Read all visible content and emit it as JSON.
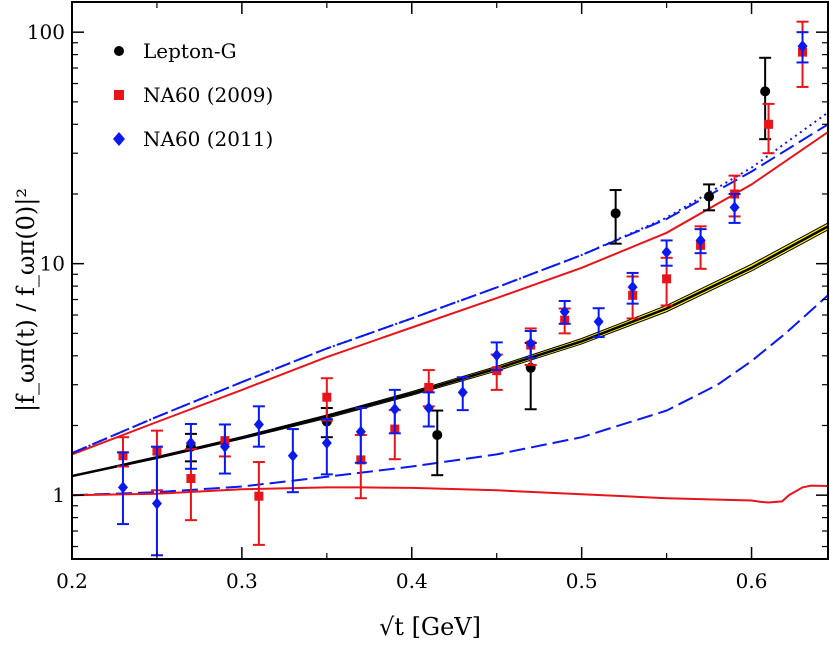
{
  "chart_data": {
    "type": "scatter",
    "title": "",
    "xlabel": "√t [GeV]",
    "ylabel": "|f_ωπ(t) / f_ωπ(0)|²",
    "y_scale": "log",
    "xlim": [
      0.2,
      0.645
    ],
    "ylim": [
      0.53,
      135
    ],
    "x_ticks": [
      0.2,
      0.3,
      0.4,
      0.5,
      0.6
    ],
    "x_tick_labels": [
      "0.2",
      "0.3",
      "0.4",
      "0.5",
      "0.6"
    ],
    "y_ticks": [
      1,
      10,
      100
    ],
    "y_tick_labels": [
      "1",
      "10",
      "100"
    ],
    "legend_position": "top-left",
    "series": [
      {
        "name": "Lepton-G",
        "kind": "points",
        "marker": "circle",
        "color": "#000000",
        "x": [
          0.27,
          0.35,
          0.415,
          0.47,
          0.52,
          0.575,
          0.608
        ],
        "y": [
          1.62,
          2.08,
          1.82,
          3.55,
          16.5,
          19.5,
          55.5
        ],
        "err_lo": [
          0.22,
          0.3,
          0.6,
          1.2,
          4.3,
          2.5,
          21.0
        ],
        "err_hi": [
          0.22,
          0.3,
          0.5,
          1.0,
          4.3,
          2.5,
          22.0
        ]
      },
      {
        "name": "NA60 (2009)",
        "kind": "points",
        "marker": "square",
        "color": "#e8141a",
        "x": [
          0.23,
          0.25,
          0.27,
          0.29,
          0.31,
          0.35,
          0.37,
          0.39,
          0.41,
          0.45,
          0.47,
          0.49,
          0.53,
          0.55,
          0.57,
          0.59,
          0.61,
          0.63
        ],
        "y": [
          1.48,
          1.55,
          1.18,
          1.72,
          0.99,
          2.65,
          1.42,
          1.93,
          2.92,
          3.45,
          4.45,
          5.7,
          7.3,
          8.6,
          12.0,
          20.0,
          40.0,
          82.0
        ],
        "err_lo": [
          0.15,
          0.5,
          0.4,
          0.25,
          0.38,
          0.55,
          0.45,
          0.5,
          0.5,
          0.6,
          0.8,
          0.7,
          1.5,
          2.0,
          2.5,
          4.0,
          10.0,
          24.0
        ],
        "err_hi": [
          0.3,
          0.35,
          0.4,
          0.3,
          0.4,
          0.55,
          0.4,
          0.4,
          0.55,
          0.6,
          0.8,
          0.7,
          1.5,
          2.0,
          2.5,
          4.0,
          9.0,
          29.0
        ]
      },
      {
        "name": "NA60 (2011)",
        "kind": "points",
        "marker": "diamond",
        "color": "#0a19f0",
        "x": [
          0.23,
          0.25,
          0.27,
          0.29,
          0.31,
          0.33,
          0.35,
          0.37,
          0.39,
          0.41,
          0.43,
          0.45,
          0.47,
          0.49,
          0.51,
          0.53,
          0.55,
          0.57,
          0.59,
          0.63
        ],
        "y": [
          1.08,
          0.92,
          1.68,
          1.62,
          2.02,
          1.48,
          1.68,
          1.88,
          2.35,
          2.38,
          2.78,
          4.02,
          4.52,
          6.2,
          5.62,
          7.92,
          11.2,
          12.6,
          17.5,
          87.0
        ],
        "err_lo": [
          0.33,
          0.37,
          0.38,
          0.38,
          0.4,
          0.45,
          0.45,
          0.5,
          0.5,
          0.4,
          0.45,
          0.55,
          0.6,
          0.7,
          0.8,
          1.2,
          1.4,
          1.5,
          2.5,
          13.0
        ],
        "err_hi": [
          0.45,
          0.7,
          0.35,
          0.4,
          0.4,
          0.45,
          0.45,
          0.5,
          0.5,
          0.4,
          0.45,
          0.55,
          0.6,
          0.7,
          0.8,
          1.2,
          1.4,
          1.5,
          2.5,
          13.0
        ]
      },
      {
        "name": "band",
        "kind": "band",
        "color": "#ffef00",
        "x": [
          0.2,
          0.25,
          0.3,
          0.35,
          0.4,
          0.45,
          0.5,
          0.55,
          0.6,
          0.645
        ],
        "y_lo": [
          1.205,
          1.44,
          1.75,
          2.15,
          2.7,
          3.44,
          4.5,
          6.2,
          9.3,
          14.0
        ],
        "y_hi": [
          1.215,
          1.47,
          1.79,
          2.22,
          2.8,
          3.6,
          4.75,
          6.6,
          9.95,
          15.0
        ]
      },
      {
        "name": "central curve",
        "kind": "line",
        "color": "#000000",
        "dash": "solid",
        "x": [
          0.2,
          0.25,
          0.3,
          0.35,
          0.4,
          0.45,
          0.5,
          0.55,
          0.6,
          0.645
        ],
        "y": [
          1.21,
          1.45,
          1.77,
          2.19,
          2.75,
          3.52,
          4.62,
          6.4,
          9.6,
          14.5
        ]
      },
      {
        "name": "upper red",
        "kind": "line",
        "color": "#e8141a",
        "dash": "solid",
        "x": [
          0.2,
          0.25,
          0.3,
          0.35,
          0.4,
          0.45,
          0.5,
          0.55,
          0.6,
          0.645
        ],
        "y": [
          1.5,
          2.07,
          2.85,
          3.95,
          5.3,
          7.1,
          9.6,
          13.6,
          22.0,
          37.0
        ]
      },
      {
        "name": "upper blue dashed",
        "kind": "line",
        "color": "#0a19f0",
        "dash": "dashed",
        "x": [
          0.2,
          0.25,
          0.3,
          0.35,
          0.4,
          0.45,
          0.5,
          0.55,
          0.6,
          0.645
        ],
        "y": [
          1.52,
          2.18,
          3.08,
          4.3,
          5.8,
          7.9,
          10.9,
          15.6,
          25.0,
          40.0
        ]
      },
      {
        "name": "upper blue dotted",
        "kind": "line",
        "color": "#0a19f0",
        "dash": "dotted",
        "x": [
          0.2,
          0.25,
          0.3,
          0.35,
          0.4,
          0.45,
          0.5,
          0.55,
          0.6,
          0.645
        ],
        "y": [
          1.52,
          2.18,
          3.08,
          4.3,
          5.8,
          7.9,
          10.9,
          15.8,
          26.0,
          45.0
        ]
      },
      {
        "name": "lower blue dashed",
        "kind": "line",
        "color": "#0a19f0",
        "dash": "dashed",
        "x": [
          0.2,
          0.25,
          0.3,
          0.35,
          0.4,
          0.45,
          0.5,
          0.55,
          0.58,
          0.6,
          0.62,
          0.645
        ],
        "y": [
          1.0,
          1.03,
          1.09,
          1.2,
          1.33,
          1.5,
          1.78,
          2.32,
          3.0,
          3.8,
          5.0,
          7.3
        ]
      },
      {
        "name": "lower red",
        "kind": "line",
        "color": "#e8141a",
        "dash": "solid",
        "x": [
          0.2,
          0.25,
          0.3,
          0.35,
          0.37,
          0.4,
          0.45,
          0.5,
          0.55,
          0.6,
          0.605,
          0.61,
          0.618,
          0.622,
          0.63,
          0.635,
          0.645
        ],
        "y": [
          1.0,
          1.015,
          1.06,
          1.08,
          1.08,
          1.075,
          1.05,
          1.01,
          0.97,
          0.948,
          0.936,
          0.93,
          0.94,
          1.0,
          1.08,
          1.1,
          1.095
        ]
      }
    ],
    "legend": [
      {
        "label": "Lepton-G",
        "marker": "circle",
        "color": "#000000"
      },
      {
        "label": "NA60 (2009)",
        "marker": "square",
        "color": "#e8141a"
      },
      {
        "label": "NA60 (2011)",
        "marker": "diamond",
        "color": "#0a19f0"
      }
    ]
  }
}
